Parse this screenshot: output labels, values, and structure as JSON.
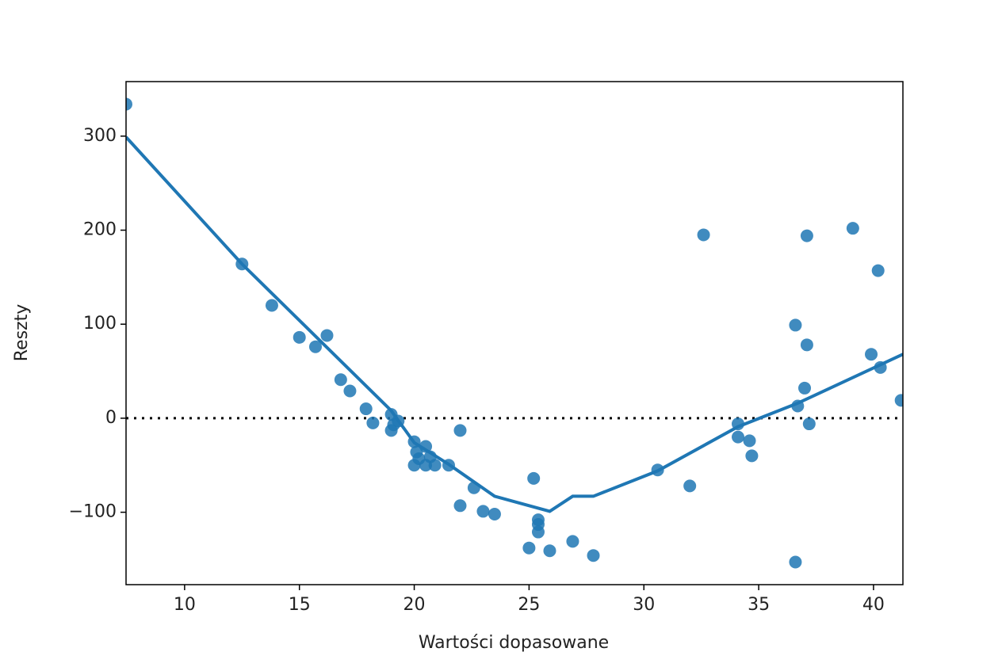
{
  "chart_data": {
    "type": "scatter",
    "x_label": "Wartości dopasowane",
    "y_label": "Reszty",
    "xlim": [
      7.45,
      41.28
    ],
    "ylim": [
      -177,
      358
    ],
    "xticks": [
      10,
      15,
      20,
      25,
      30,
      35,
      40
    ],
    "yticks": [
      {
        "value": -100,
        "label": "−100"
      },
      0,
      100,
      200,
      300
    ],
    "reference_line": 0,
    "series": [
      {
        "kind": "points",
        "color": "#1f77b4",
        "x": [
          7.45,
          12.5,
          13.8,
          15.0,
          15.7,
          16.2,
          16.8,
          17.2,
          17.9,
          18.2,
          19.0,
          19.0,
          19.3,
          19.1,
          20.0,
          20.0,
          20.1,
          20.2,
          20.5,
          20.5,
          20.7,
          20.9,
          21.5,
          22.0,
          22.0,
          22.6,
          23.0,
          23.5,
          25.0,
          25.2,
          25.4,
          25.4,
          25.4,
          25.9,
          26.9,
          27.8,
          30.6,
          32.0,
          32.6,
          34.1,
          34.1,
          34.6,
          34.7,
          36.6,
          36.6,
          36.7,
          37.0,
          37.1,
          37.1,
          37.2,
          39.1,
          39.9,
          40.2,
          40.3,
          41.2
        ],
        "values": [
          334,
          164,
          120,
          86,
          76,
          88,
          41,
          29,
          10,
          -5,
          4,
          -13,
          -3,
          -7,
          -25,
          -50,
          -36,
          -43,
          -30,
          -50,
          -41,
          -50,
          -50,
          -13,
          -93,
          -74,
          -99,
          -102,
          -138,
          -64,
          -108,
          -113,
          -121,
          -141,
          -131,
          -146,
          -55,
          -72,
          195,
          -6,
          -20,
          -24,
          -40,
          99,
          -153,
          13,
          32,
          194,
          78,
          -6,
          202,
          68,
          157,
          54,
          19
        ]
      },
      {
        "kind": "line",
        "color": "#1f77b4",
        "x": [
          7.45,
          12.5,
          19.0,
          20.0,
          21.5,
          23.5,
          25.9,
          26.9,
          27.8,
          30.6,
          34.1,
          36.7,
          41.28
        ],
        "values": [
          299,
          164,
          8,
          -26,
          -49,
          -83,
          -99,
          -83,
          -83,
          -56,
          -9,
          16,
          68
        ]
      }
    ]
  }
}
